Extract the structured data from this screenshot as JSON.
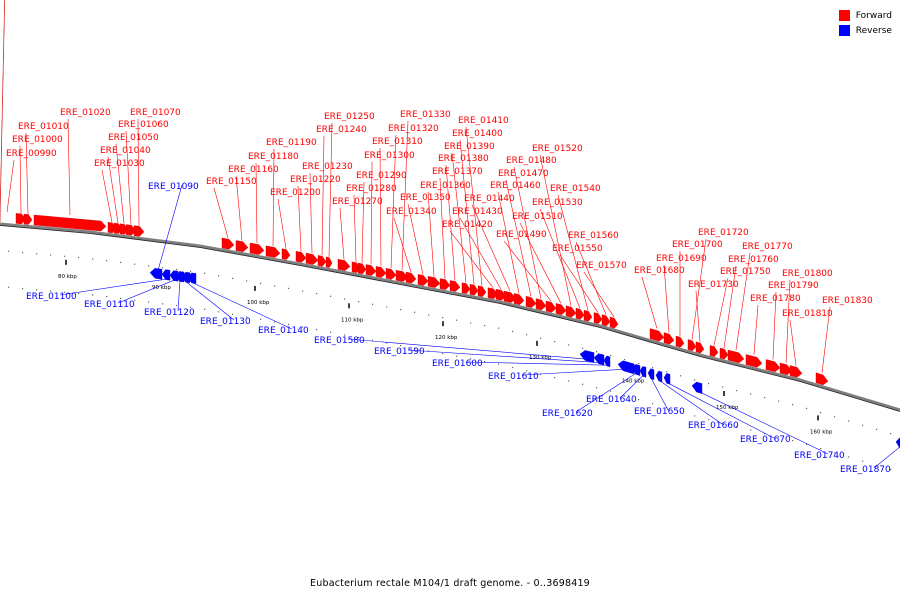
{
  "legend": {
    "forward_label": "Forward",
    "reverse_label": "Reverse",
    "forward_color": "#ff0000",
    "reverse_color": "#0000ff"
  },
  "caption": "Eubacterium rectale M104/1 draft genome. - 0..3698419",
  "axis_label_color": "#000000",
  "backbone_color": "#7f7f7f",
  "ticks": [
    "80 kbp",
    "90 kbp",
    "100 kbp",
    "110 kbp",
    "120 kbp",
    "130 kbp",
    "140 kbp",
    "150 kbp",
    "160 kbp"
  ],
  "forward_genes": [
    "ERE_00990",
    "ERE_01000",
    "ERE_01010",
    "ERE_01020",
    "ERE_01030",
    "ERE_01040",
    "ERE_01050",
    "ERE_01060",
    "ERE_01070",
    "ERE_01150",
    "ERE_01160",
    "ERE_01180",
    "ERE_01190",
    "ERE_01200",
    "ERE_01220",
    "ERE_01230",
    "ERE_01240",
    "ERE_01250",
    "ERE_01270",
    "ERE_01280",
    "ERE_01290",
    "ERE_01300",
    "ERE_01310",
    "ERE_01320",
    "ERE_01330",
    "ERE_01340",
    "ERE_01350",
    "ERE_01360",
    "ERE_01370",
    "ERE_01380",
    "ERE_01390",
    "ERE_01400",
    "ERE_01410",
    "ERE_01420",
    "ERE_01430",
    "ERE_01440",
    "ERE_01460",
    "ERE_01470",
    "ERE_01480",
    "ERE_01490",
    "ERE_01510",
    "ERE_01520",
    "ERE_01530",
    "ERE_01540",
    "ERE_01550",
    "ERE_01560",
    "ERE_01570",
    "ERE_01680",
    "ERE_01690",
    "ERE_01700",
    "ERE_01720",
    "ERE_01730",
    "ERE_01750",
    "ERE_01760",
    "ERE_01770",
    "ERE_01780",
    "ERE_01790",
    "ERE_01800",
    "ERE_01810",
    "ERE_01830"
  ],
  "reverse_genes": [
    "ERE_01090",
    "ERE_01100",
    "ERE_01110",
    "ERE_01120",
    "ERE_01130",
    "ERE_01140",
    "ERE_01580",
    "ERE_01590",
    "ERE_01600",
    "ERE_01610",
    "ERE_01620",
    "ERE_01640",
    "ERE_01650",
    "ERE_01660",
    "ERE_01670",
    "ERE_01740",
    "ERE_01870"
  ]
}
